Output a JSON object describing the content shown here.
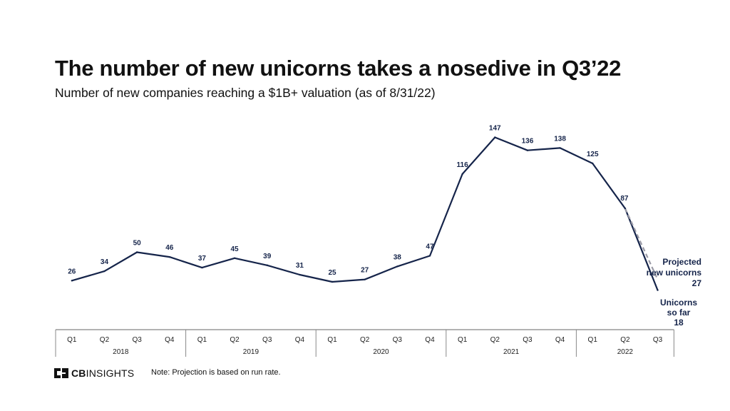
{
  "chart_data": {
    "type": "line",
    "title": "The number of new unicorns takes a nosedive in Q3’22",
    "subtitle": "Number of new companies reaching a $1B+ valuation (as of 8/31/22)",
    "quarters": [
      "Q1",
      "Q2",
      "Q3",
      "Q4",
      "Q1",
      "Q2",
      "Q3",
      "Q4",
      "Q1",
      "Q2",
      "Q3",
      "Q4",
      "Q1",
      "Q2",
      "Q3",
      "Q4",
      "Q1",
      "Q2",
      "Q3"
    ],
    "years": [
      {
        "label": "2018",
        "quarters": 4
      },
      {
        "label": "2019",
        "quarters": 4
      },
      {
        "label": "2020",
        "quarters": 4
      },
      {
        "label": "2021",
        "quarters": 4
      },
      {
        "label": "2022",
        "quarters": 3
      }
    ],
    "values": [
      26,
      34,
      50,
      46,
      37,
      45,
      39,
      31,
      25,
      27,
      38,
      47,
      116,
      147,
      136,
      138,
      125,
      87,
      18
    ],
    "projected": {
      "value": 27,
      "label_lines": [
        "Projected",
        "new unicorns"
      ],
      "value_label": "27"
    },
    "so_far": {
      "value": 18,
      "label_lines": [
        "Unicorns",
        "so far"
      ],
      "value_label": "18"
    },
    "ylim": [
      0,
      160
    ],
    "line_color": "#15244a",
    "projection_color": "#9a9aa6",
    "data_label_color": "#15244a"
  },
  "footer": {
    "logo_bold": "CB",
    "logo_rest": "INSIGHTS",
    "note": "Note: Projection is based on run rate."
  }
}
